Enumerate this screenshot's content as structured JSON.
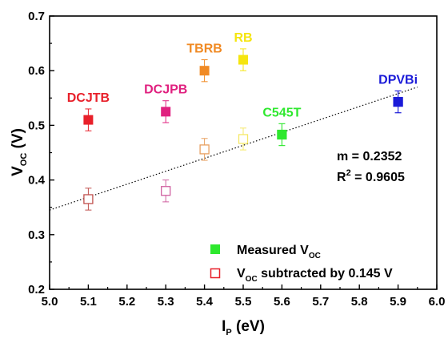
{
  "chart_data": {
    "type": "scatter",
    "xlabel": {
      "main": "I",
      "sub": "P",
      "rest": " (eV)"
    },
    "ylabel": {
      "main": "V",
      "sub": "OC",
      "rest": " (V)"
    },
    "xlim": [
      5.0,
      6.0
    ],
    "ylim": [
      0.2,
      0.7
    ],
    "xticks": [
      "5.0",
      "5.1",
      "5.2",
      "5.3",
      "5.4",
      "5.5",
      "5.6",
      "5.7",
      "5.8",
      "5.9",
      "6.0"
    ],
    "yticks": [
      "0.2",
      "0.3",
      "0.4",
      "0.5",
      "0.6",
      "0.7"
    ],
    "grid": false,
    "measured": {
      "legend": {
        "main": "Measured V",
        "sub": "OC"
      },
      "points": [
        {
          "label": "DCJTB",
          "x": 5.1,
          "y": 0.51,
          "err": 0.02,
          "color": "#e8202a"
        },
        {
          "label": "DCJPB",
          "x": 5.3,
          "y": 0.525,
          "err": 0.02,
          "color": "#e0207f"
        },
        {
          "label": "TBRB",
          "x": 5.4,
          "y": 0.6,
          "err": 0.02,
          "color": "#f08a24"
        },
        {
          "label": "RB",
          "x": 5.5,
          "y": 0.62,
          "err": 0.02,
          "color": "#f5e50f"
        },
        {
          "label": "C545T",
          "x": 5.6,
          "y": 0.483,
          "err": 0.02,
          "color": "#2ee82e"
        },
        {
          "label": "DPVBi",
          "x": 5.9,
          "y": 0.543,
          "err": 0.02,
          "color": "#1a1ad8"
        }
      ]
    },
    "subtracted": {
      "legend": {
        "main": "V",
        "sub": "OC",
        "rest": " subtracted by 0.145 V"
      },
      "points": [
        {
          "x": 5.1,
          "y": 0.365,
          "err": 0.02,
          "color": "#c0504d"
        },
        {
          "x": 5.3,
          "y": 0.38,
          "err": 0.02,
          "color": "#d060a0"
        },
        {
          "x": 5.4,
          "y": 0.456,
          "err": 0.02,
          "color": "#e8a060"
        },
        {
          "x": 5.5,
          "y": 0.475,
          "err": 0.02,
          "color": "#f5e868"
        },
        {
          "x": 5.6,
          "y": 0.483,
          "err": 0.02,
          "color": "#70e870"
        },
        {
          "x": 5.9,
          "y": 0.543,
          "err": 0.02,
          "color": "#4040e0"
        }
      ]
    },
    "fit": {
      "slope": 0.2352,
      "r2": 0.9605,
      "x": [
        5.0,
        5.95
      ],
      "y": [
        0.345,
        0.57
      ],
      "slope_text": "m = 0.2352",
      "r2_text": {
        "main": "R",
        "sup": "2",
        "rest": " = 0.9605"
      }
    },
    "legend_position": "bottom-right"
  }
}
